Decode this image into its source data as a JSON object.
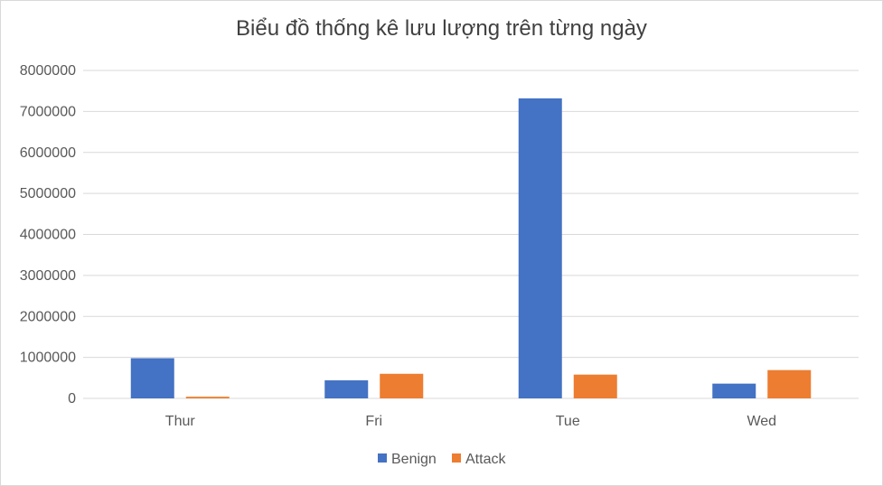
{
  "chart_data": {
    "type": "bar",
    "title": "Biểu đồ thống kê lưu lượng trên từng ngày",
    "categories": [
      "Thur",
      "Fri",
      "Tue",
      "Wed"
    ],
    "series": [
      {
        "name": "Benign",
        "values": [
          980000,
          440000,
          7320000,
          360000
        ],
        "color": "#4472c4"
      },
      {
        "name": "Attack",
        "values": [
          40000,
          600000,
          580000,
          690000
        ],
        "color": "#ed7d31"
      }
    ],
    "yticks": [
      "0",
      "1000000",
      "2000000",
      "3000000",
      "4000000",
      "5000000",
      "6000000",
      "7000000",
      "8000000"
    ],
    "ylim": [
      0,
      8000000
    ],
    "grid": true,
    "legend_position": "bottom",
    "colors": {
      "gridline": "#d9d9d9",
      "axis": "#d9d9d9",
      "text": "#595959"
    }
  }
}
